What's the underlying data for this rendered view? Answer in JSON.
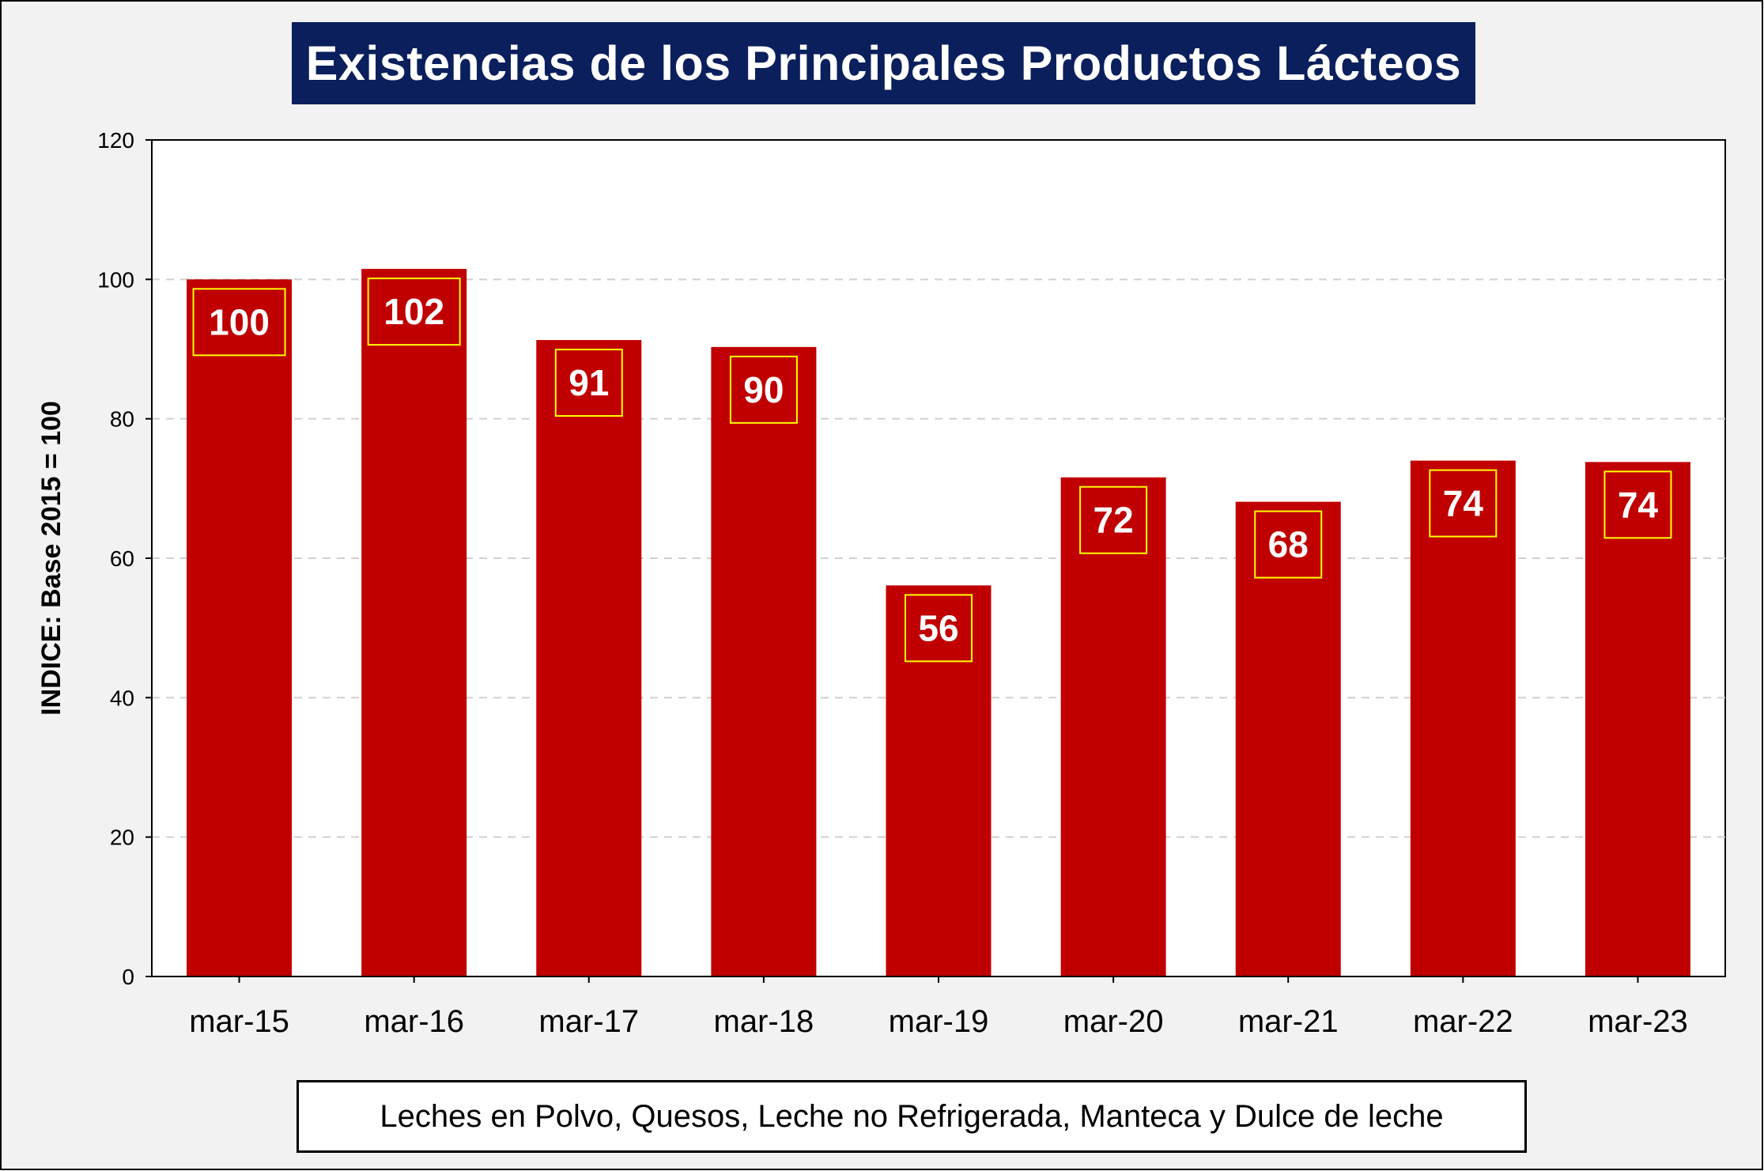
{
  "title": "Existencias de los Principales Productos Lácteos",
  "footnote": "Leches en Polvo, Quesos, Leche no Refrigerada, Manteca y Dulce de leche",
  "colors": {
    "bar": "#c00000",
    "title_bg": "#0a1f5c",
    "label_border": "#ffff00",
    "background": "#f2f2f2"
  },
  "chart_data": {
    "type": "bar",
    "title": "Existencias de los Principales Productos Lácteos",
    "xlabel": "",
    "ylabel": "INDICE: Base 2015 = 100",
    "ylim": [
      0,
      120
    ],
    "yticks": [
      0,
      20,
      40,
      60,
      80,
      100,
      120
    ],
    "grid": "horizontal dashed",
    "categories": [
      "mar-15",
      "mar-16",
      "mar-17",
      "mar-18",
      "mar-19",
      "mar-20",
      "mar-21",
      "mar-22",
      "mar-23"
    ],
    "values": [
      100,
      101.5,
      91.3,
      90.3,
      56.1,
      71.6,
      68.1,
      74.0,
      73.8
    ],
    "data_labels": [
      "100",
      "102",
      "91",
      "90",
      "56",
      "72",
      "68",
      "74",
      "74"
    ]
  }
}
